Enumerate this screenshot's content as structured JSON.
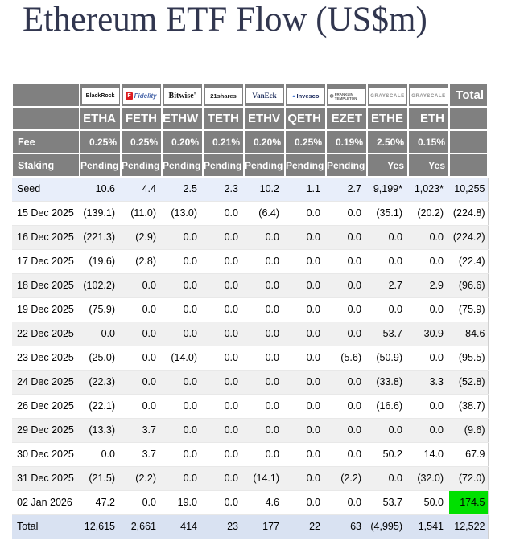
{
  "title": "Ethereum ETF Flow (US$m)",
  "colors": {
    "header_bg": "#808080",
    "negative": "#ff0000",
    "seed_row_bg": "#e8eefa",
    "total_row_bg": "#d9e2f2",
    "zebra_bg": "#f0f0f0",
    "highlight_green": "#00e000",
    "title_color": "#31364f"
  },
  "table": {
    "providers": [
      {
        "id": "blackrock",
        "label": "BlackRock"
      },
      {
        "id": "fidelity",
        "label": "Fidelity"
      },
      {
        "id": "bitwise",
        "label": "Bitwise'"
      },
      {
        "id": "21shares",
        "label": "21shares"
      },
      {
        "id": "vaneck",
        "label": "VanEck"
      },
      {
        "id": "invesco",
        "label": "Invesco"
      },
      {
        "id": "franklin",
        "label": "FRANKLIN TEMPLETON"
      },
      {
        "id": "grayscale",
        "label": "GRAYSCALE"
      },
      {
        "id": "grayscale2",
        "label": "GRAYSCALE"
      }
    ],
    "total_label": "Total",
    "tickers": [
      "ETHA",
      "FETH",
      "ETHW",
      "TETH",
      "ETHV",
      "QETH",
      "EZET",
      "ETHE",
      "ETH"
    ],
    "fee_label": "Fee",
    "fees": [
      "0.25%",
      "0.25%",
      "0.20%",
      "0.21%",
      "0.20%",
      "0.25%",
      "0.19%",
      "2.50%",
      "0.15%"
    ],
    "staking_label": "Staking",
    "staking": [
      "Pending",
      "Pending",
      "Pending",
      "Pending",
      "Pending",
      "Pending",
      "Pending",
      "Yes",
      "Yes"
    ],
    "rows": [
      {
        "kind": "seed",
        "label": "Seed",
        "values": [
          "10.6",
          "4.4",
          "2.5",
          "2.3",
          "10.2",
          "1.1",
          "2.7",
          "9,199*",
          "1,023*"
        ],
        "total": "10,255"
      },
      {
        "kind": "date",
        "label": "15 Dec 2025",
        "values": [
          "(139.1)",
          "(11.0)",
          "(13.0)",
          "0.0",
          "(6.4)",
          "0.0",
          "0.0",
          "(35.1)",
          "(20.2)"
        ],
        "total": "(224.8)"
      },
      {
        "kind": "date",
        "label": "16 Dec 2025",
        "values": [
          "(221.3)",
          "(2.9)",
          "0.0",
          "0.0",
          "0.0",
          "0.0",
          "0.0",
          "0.0",
          "0.0"
        ],
        "total": "(224.2)"
      },
      {
        "kind": "date",
        "label": "17 Dec 2025",
        "values": [
          "(19.6)",
          "(2.8)",
          "0.0",
          "0.0",
          "0.0",
          "0.0",
          "0.0",
          "0.0",
          "0.0"
        ],
        "total": "(22.4)"
      },
      {
        "kind": "date",
        "label": "18 Dec 2025",
        "values": [
          "(102.2)",
          "0.0",
          "0.0",
          "0.0",
          "0.0",
          "0.0",
          "0.0",
          "2.7",
          "2.9"
        ],
        "total": "(96.6)"
      },
      {
        "kind": "date",
        "label": "19 Dec 2025",
        "values": [
          "(75.9)",
          "0.0",
          "0.0",
          "0.0",
          "0.0",
          "0.0",
          "0.0",
          "0.0",
          "0.0"
        ],
        "total": "(75.9)"
      },
      {
        "kind": "date",
        "label": "22 Dec 2025",
        "values": [
          "0.0",
          "0.0",
          "0.0",
          "0.0",
          "0.0",
          "0.0",
          "0.0",
          "53.7",
          "30.9"
        ],
        "total": "84.6"
      },
      {
        "kind": "date",
        "label": "23 Dec 2025",
        "values": [
          "(25.0)",
          "0.0",
          "(14.0)",
          "0.0",
          "0.0",
          "0.0",
          "(5.6)",
          "(50.9)",
          "0.0"
        ],
        "total": "(95.5)"
      },
      {
        "kind": "date",
        "label": "24 Dec 2025",
        "values": [
          "(22.3)",
          "0.0",
          "0.0",
          "0.0",
          "0.0",
          "0.0",
          "0.0",
          "(33.8)",
          "3.3"
        ],
        "total": "(52.8)"
      },
      {
        "kind": "date",
        "label": "26 Dec 2025",
        "values": [
          "(22.1)",
          "0.0",
          "0.0",
          "0.0",
          "0.0",
          "0.0",
          "0.0",
          "(16.6)",
          "0.0"
        ],
        "total": "(38.7)"
      },
      {
        "kind": "date",
        "label": "29 Dec 2025",
        "values": [
          "(13.3)",
          "3.7",
          "0.0",
          "0.0",
          "0.0",
          "0.0",
          "0.0",
          "0.0",
          "0.0"
        ],
        "total": "(9.6)"
      },
      {
        "kind": "date",
        "label": "30 Dec 2025",
        "values": [
          "0.0",
          "3.7",
          "0.0",
          "0.0",
          "0.0",
          "0.0",
          "0.0",
          "50.2",
          "14.0"
        ],
        "total": "67.9"
      },
      {
        "kind": "date",
        "label": "31 Dec 2025",
        "values": [
          "(21.5)",
          "(2.2)",
          "0.0",
          "0.0",
          "(14.1)",
          "0.0",
          "(2.2)",
          "0.0",
          "(32.0)"
        ],
        "total": "(72.0)"
      },
      {
        "kind": "date",
        "label": "02 Jan 2026",
        "values": [
          "47.2",
          "0.0",
          "19.0",
          "0.0",
          "4.6",
          "0.0",
          "0.0",
          "53.7",
          "50.0"
        ],
        "total": "174.5",
        "total_highlight": true
      },
      {
        "kind": "grandtotal",
        "label": "Total",
        "values": [
          "12,615",
          "2,661",
          "414",
          "23",
          "177",
          "22",
          "63",
          "(4,995)",
          "1,541"
        ],
        "total": "12,522"
      }
    ]
  },
  "chart_data": {
    "type": "table",
    "title": "Ethereum ETF Flow (US$m)",
    "columns": [
      "ETHA",
      "FETH",
      "ETHW",
      "TETH",
      "ETHV",
      "QETH",
      "EZET",
      "ETHE",
      "ETH",
      "Total"
    ],
    "providers": [
      "BlackRock",
      "Fidelity",
      "Bitwise",
      "21shares",
      "VanEck",
      "Invesco",
      "Franklin Templeton",
      "Grayscale",
      "Grayscale"
    ],
    "fee_pct": [
      0.25,
      0.25,
      0.2,
      0.21,
      0.2,
      0.25,
      0.19,
      2.5,
      0.15
    ],
    "staking": [
      "Pending",
      "Pending",
      "Pending",
      "Pending",
      "Pending",
      "Pending",
      "Pending",
      "Yes",
      "Yes"
    ],
    "rows": [
      {
        "label": "Seed",
        "values": [
          10.6,
          4.4,
          2.5,
          2.3,
          10.2,
          1.1,
          2.7,
          9199,
          1023,
          10255
        ]
      },
      {
        "label": "15 Dec 2025",
        "values": [
          -139.1,
          -11.0,
          -13.0,
          0,
          -6.4,
          0,
          0,
          -35.1,
          -20.2,
          -224.8
        ]
      },
      {
        "label": "16 Dec 2025",
        "values": [
          -221.3,
          -2.9,
          0,
          0,
          0,
          0,
          0,
          0,
          0,
          -224.2
        ]
      },
      {
        "label": "17 Dec 2025",
        "values": [
          -19.6,
          -2.8,
          0,
          0,
          0,
          0,
          0,
          0,
          0,
          -22.4
        ]
      },
      {
        "label": "18 Dec 2025",
        "values": [
          -102.2,
          0,
          0,
          0,
          0,
          0,
          0,
          2.7,
          2.9,
          -96.6
        ]
      },
      {
        "label": "19 Dec 2025",
        "values": [
          -75.9,
          0,
          0,
          0,
          0,
          0,
          0,
          0,
          0,
          -75.9
        ]
      },
      {
        "label": "22 Dec 2025",
        "values": [
          0,
          0,
          0,
          0,
          0,
          0,
          0,
          53.7,
          30.9,
          84.6
        ]
      },
      {
        "label": "23 Dec 2025",
        "values": [
          -25.0,
          0,
          -14.0,
          0,
          0,
          0,
          -5.6,
          -50.9,
          0,
          -95.5
        ]
      },
      {
        "label": "24 Dec 2025",
        "values": [
          -22.3,
          0,
          0,
          0,
          0,
          0,
          0,
          -33.8,
          3.3,
          -52.8
        ]
      },
      {
        "label": "26 Dec 2025",
        "values": [
          -22.1,
          0,
          0,
          0,
          0,
          0,
          0,
          -16.6,
          0,
          -38.7
        ]
      },
      {
        "label": "29 Dec 2025",
        "values": [
          -13.3,
          3.7,
          0,
          0,
          0,
          0,
          0,
          0,
          0,
          -9.6
        ]
      },
      {
        "label": "30 Dec 2025",
        "values": [
          0,
          3.7,
          0,
          0,
          0,
          0,
          0,
          50.2,
          14.0,
          67.9
        ]
      },
      {
        "label": "31 Dec 2025",
        "values": [
          -21.5,
          -2.2,
          0,
          0,
          -14.1,
          0,
          -2.2,
          0,
          -32.0,
          -72.0
        ]
      },
      {
        "label": "02 Jan 2026",
        "values": [
          47.2,
          0,
          19.0,
          0,
          4.6,
          0,
          0,
          53.7,
          50.0,
          174.5
        ]
      },
      {
        "label": "Total",
        "values": [
          12615,
          2661,
          414,
          23,
          177,
          22,
          63,
          -4995,
          1541,
          12522
        ]
      }
    ]
  }
}
